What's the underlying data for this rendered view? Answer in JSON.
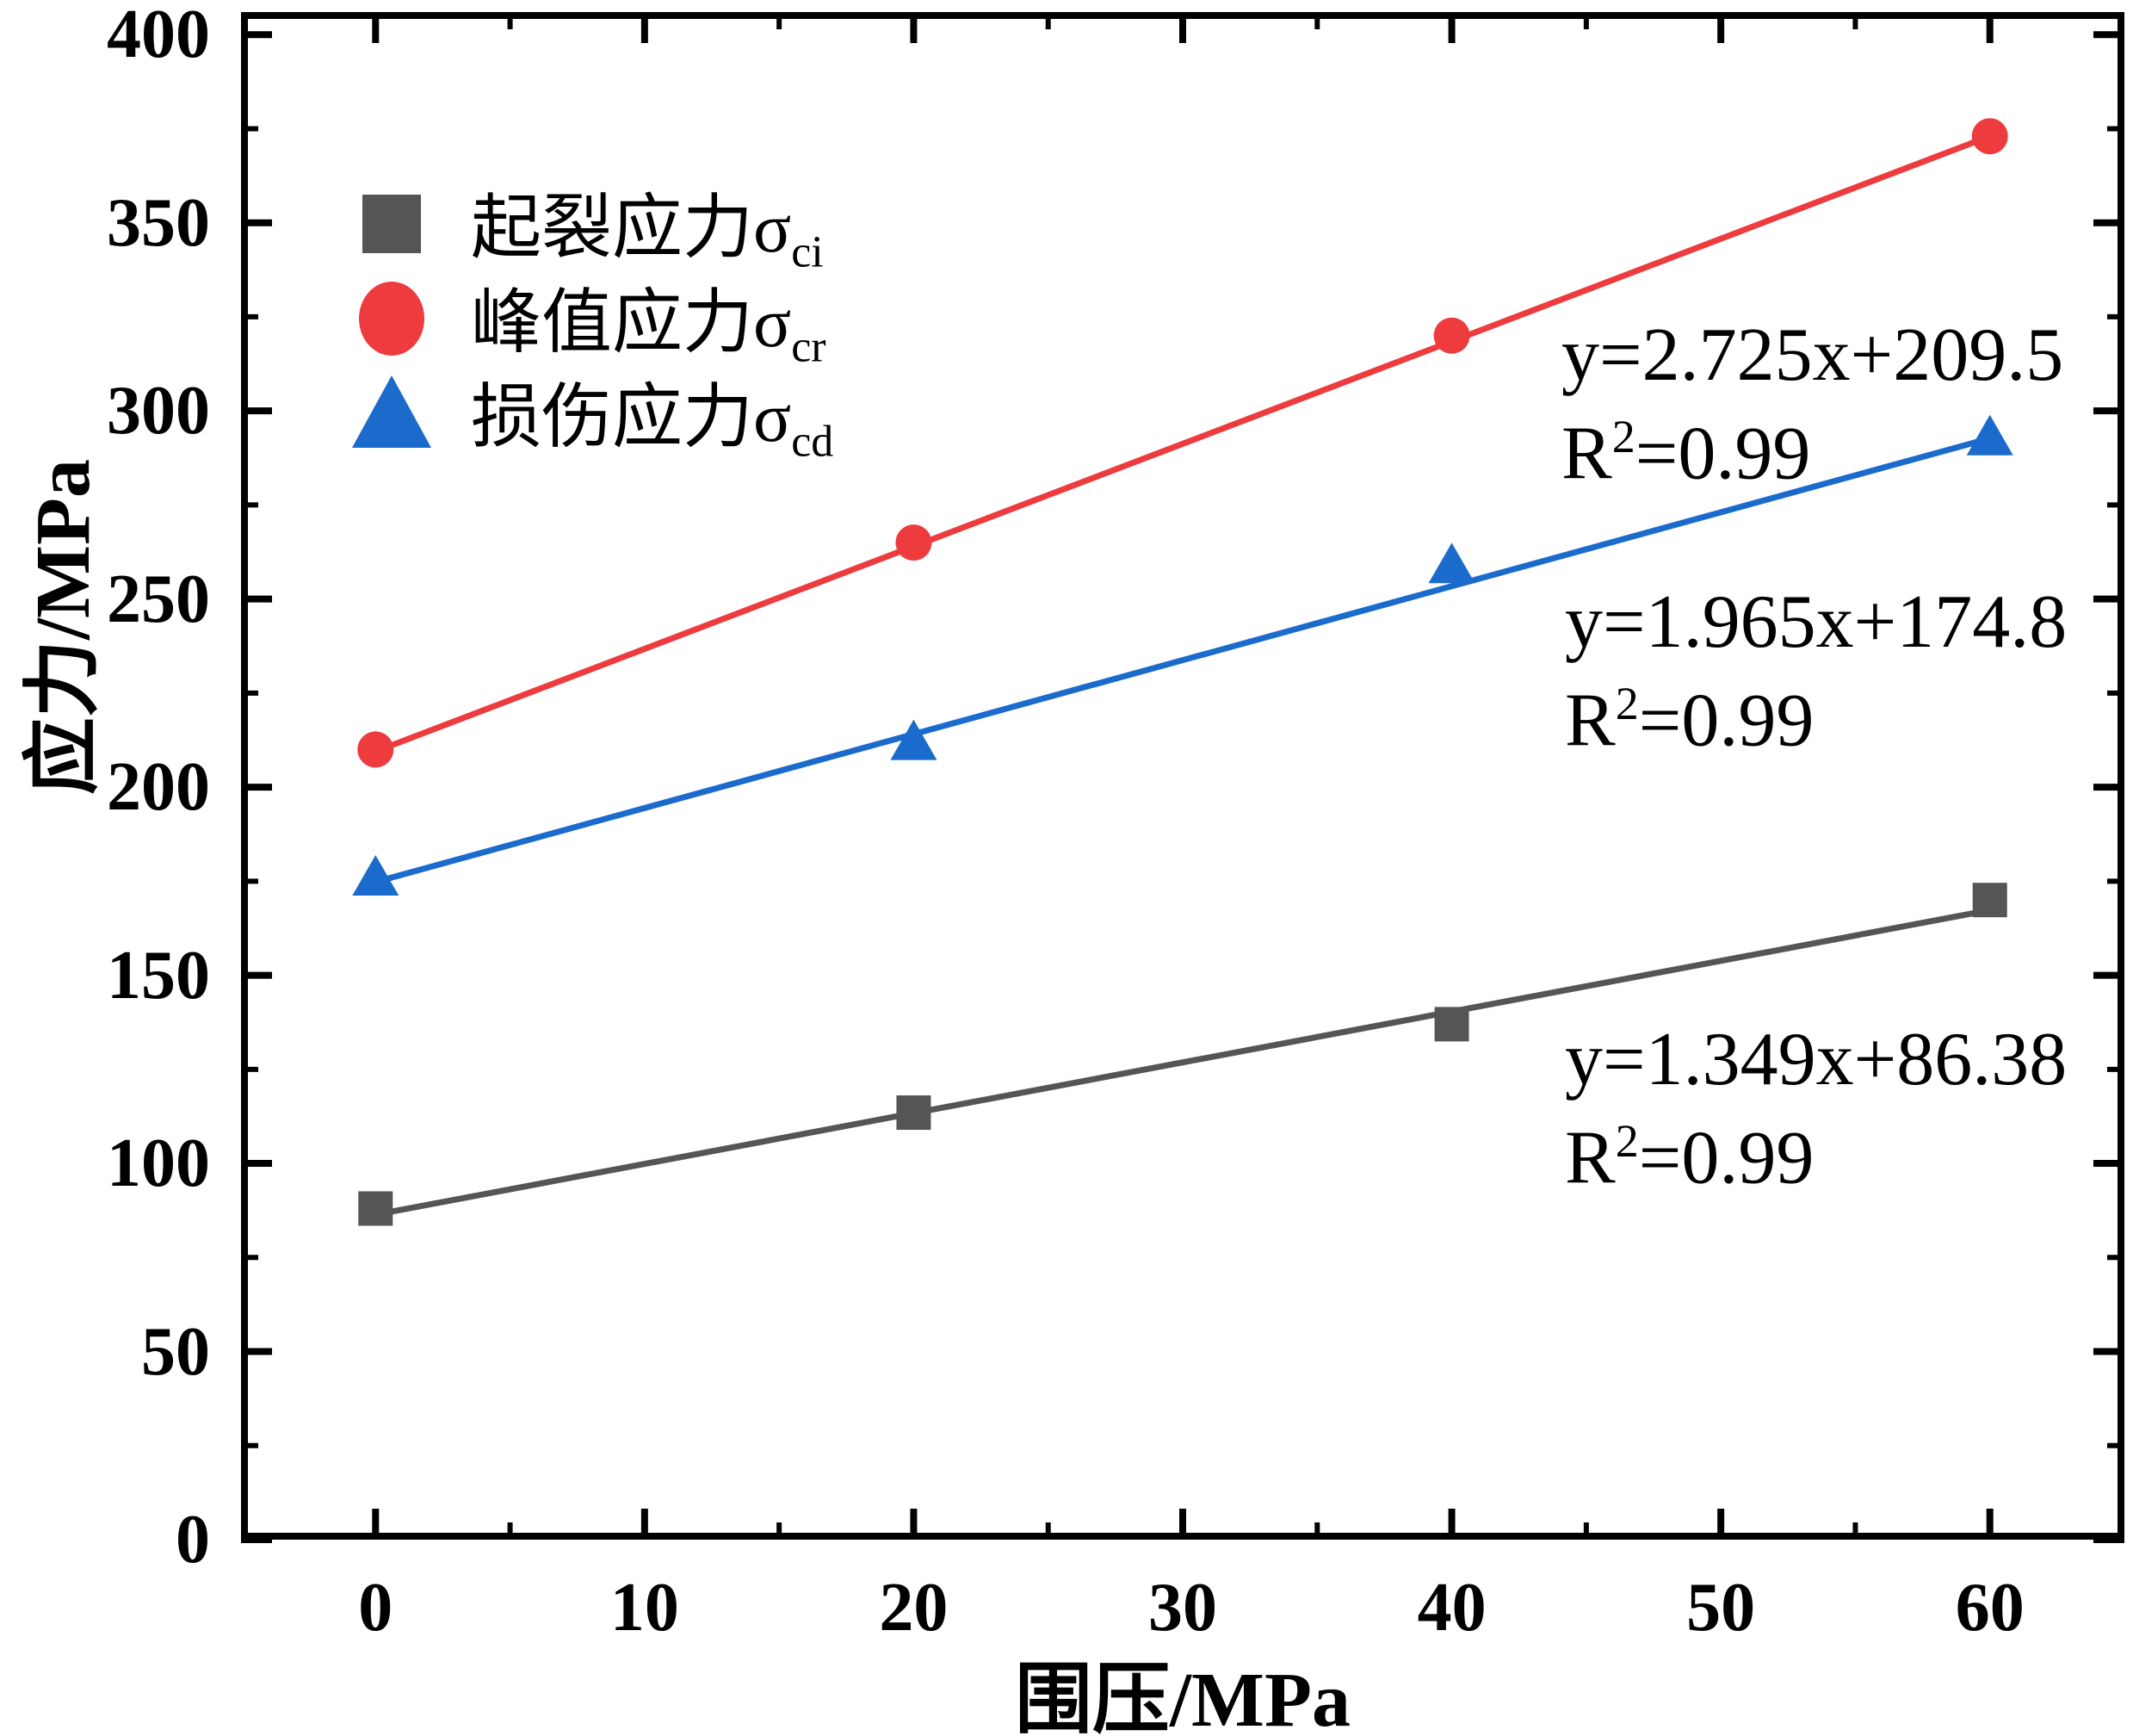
{
  "figure": {
    "background": "#ffffff",
    "frame_color": "#000000"
  },
  "axes": {
    "x": {
      "title": "围压/MPa",
      "min": -5,
      "max": 65,
      "majors": [
        0,
        10,
        20,
        30,
        40,
        50,
        60
      ],
      "minors": [
        5,
        15,
        25,
        35,
        45,
        55
      ],
      "labels": [
        "0",
        "10",
        "20",
        "30",
        "40",
        "50",
        "60"
      ]
    },
    "y": {
      "title": "应力/MPa",
      "min": 0,
      "max": 406,
      "majors": [
        0,
        50,
        100,
        150,
        200,
        250,
        300,
        350,
        400
      ],
      "minors": [
        25,
        75,
        125,
        175,
        225,
        275,
        325,
        375
      ],
      "labels": [
        "0",
        "50",
        "100",
        "150",
        "200",
        "250",
        "300",
        "350",
        "400"
      ]
    }
  },
  "legend": {
    "items": [
      {
        "text": "起裂应力σ",
        "sub": "ci",
        "symbol": "square",
        "color": "#555555"
      },
      {
        "text": "峰值应力σ",
        "sub": "cr",
        "symbol": "circle",
        "color": "#ED3B3E"
      },
      {
        "text": "损伤应力σ",
        "sub": "cd",
        "symbol": "triangle",
        "color": "#1B6BCC"
      }
    ]
  },
  "annotations": [
    {
      "line1": "y=2.725x+209.5",
      "r2_base": "R",
      "r2_sup": "2",
      "r2_rest": "=0.99"
    },
    {
      "line1": "y=1.965x+174.8",
      "r2_base": "R",
      "r2_sup": "2",
      "r2_rest": "=0.99"
    },
    {
      "line1": "y=1.349x+86.38",
      "r2_base": "R",
      "r2_sup": "2",
      "r2_rest": "=0.99"
    }
  ],
  "chart_data": {
    "type": "scatter",
    "x": [
      0,
      20,
      40,
      60
    ],
    "xlabel": "围压/MPa",
    "ylabel": "应力/MPa",
    "xlim": [
      0,
      60
    ],
    "ylim": [
      0,
      400
    ],
    "x_major_tick": 10,
    "y_major_tick": 50,
    "grid": false,
    "legend_position": "upper-left-inside",
    "series": [
      {
        "name": "起裂应力σci",
        "marker": "square",
        "color": "#555555",
        "values": [
          88,
          113.5,
          137,
          170
        ],
        "fit": {
          "equation": "y=1.349x+86.38",
          "slope": 1.349,
          "intercept": 86.38,
          "r2": 0.99
        }
      },
      {
        "name": "峰值应力σcr",
        "marker": "circle",
        "color": "#ED3B3E",
        "values": [
          210,
          265,
          320,
          373
        ],
        "fit": {
          "equation": "y=2.725x+209.5",
          "slope": 2.725,
          "intercept": 209.5,
          "r2": 0.99
        }
      },
      {
        "name": "损伤应力σcd",
        "marker": "triangle",
        "color": "#1B6BCC",
        "values": [
          176,
          212,
          259,
          293
        ],
        "fit": {
          "equation": "y=1.965x+174.8",
          "slope": 1.965,
          "intercept": 174.8,
          "r2": 0.99
        }
      }
    ]
  }
}
